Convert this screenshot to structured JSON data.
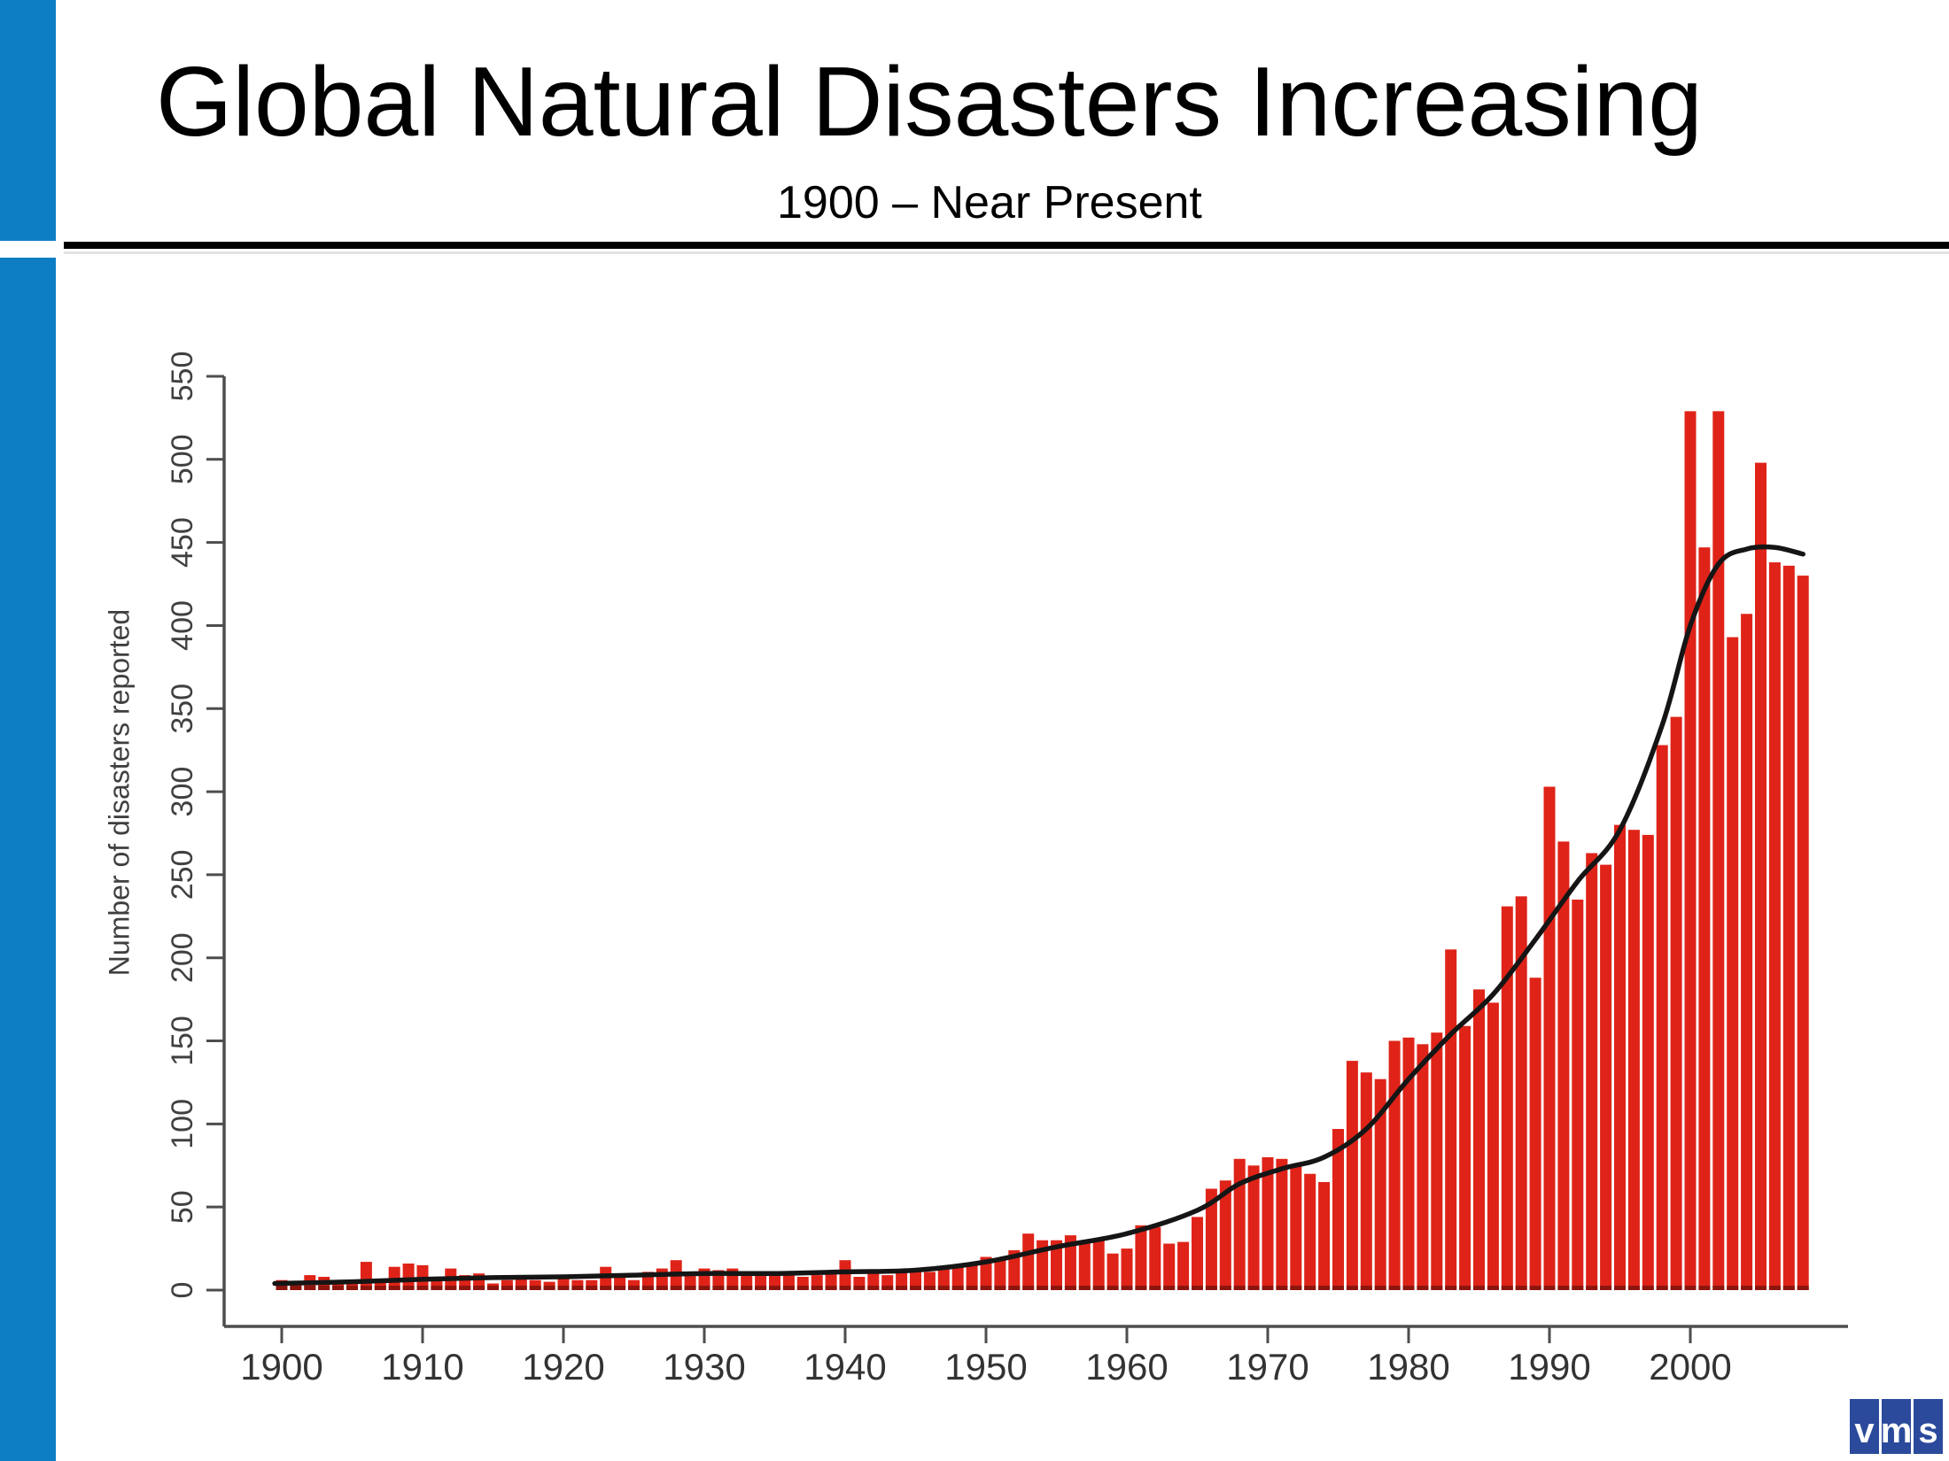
{
  "slide": {
    "title": "Global Natural Disasters Increasing",
    "subtitle": "1900 – Near Present",
    "accent_stripe_color": "#0d7ec3",
    "rule_color": "#000000",
    "background": "#ffffff"
  },
  "logo": {
    "letters": [
      "v",
      "m",
      "s"
    ],
    "tile_color": "#2b4a9c",
    "letter_color": "#ffffff"
  },
  "chart_data": {
    "type": "bar",
    "title": "",
    "xlabel": "",
    "ylabel": "Number of disasters reported",
    "x_start_year": 1900,
    "x_end_year": 2008,
    "x_ticks": [
      1900,
      1910,
      1920,
      1930,
      1940,
      1950,
      1960,
      1970,
      1980,
      1990,
      2000
    ],
    "y_ticks": [
      0,
      50,
      100,
      150,
      200,
      250,
      300,
      350,
      400,
      450,
      500,
      550
    ],
    "ylim": [
      0,
      550
    ],
    "grid": false,
    "legend": false,
    "bar_color": "#df2318",
    "bar_base_color": "#8c150e",
    "trend_color": "#151515",
    "axis_color": "#4d4d4d",
    "tick_label_color": "#404040",
    "values_by_year": [
      6,
      4,
      9,
      8,
      5,
      6,
      17,
      6,
      14,
      16,
      15,
      8,
      13,
      9,
      10,
      4,
      6,
      9,
      6,
      5,
      9,
      6,
      6,
      14,
      8,
      6,
      11,
      13,
      18,
      9,
      13,
      12,
      13,
      10,
      11,
      9,
      10,
      8,
      9,
      11,
      18,
      8,
      10,
      9,
      11,
      12,
      11,
      13,
      14,
      15,
      20,
      19,
      24,
      34,
      30,
      30,
      33,
      28,
      30,
      22,
      25,
      39,
      38,
      28,
      29,
      44,
      61,
      66,
      79,
      75,
      80,
      79,
      75,
      70,
      65,
      97,
      138,
      131,
      127,
      150,
      152,
      148,
      155,
      205,
      159,
      181,
      173,
      231,
      237,
      188,
      303,
      270,
      235,
      263,
      256,
      280,
      277,
      274,
      328,
      345,
      529,
      447,
      529,
      393,
      407,
      498,
      438,
      436,
      430
    ],
    "trend_line": {
      "description": "smoothed trend of disasters reported",
      "points": [
        [
          1899.5,
          4
        ],
        [
          1905,
          5
        ],
        [
          1910,
          6.5
        ],
        [
          1915,
          7.5
        ],
        [
          1920,
          8
        ],
        [
          1925,
          9
        ],
        [
          1930,
          10
        ],
        [
          1935,
          10
        ],
        [
          1940,
          11
        ],
        [
          1945,
          12
        ],
        [
          1950,
          17
        ],
        [
          1955,
          26
        ],
        [
          1960,
          34
        ],
        [
          1965,
          48
        ],
        [
          1968,
          64
        ],
        [
          1971,
          73
        ],
        [
          1974,
          80
        ],
        [
          1977,
          97
        ],
        [
          1980,
          127
        ],
        [
          1983,
          154
        ],
        [
          1986,
          178
        ],
        [
          1989,
          211
        ],
        [
          1992,
          246
        ],
        [
          1995,
          277
        ],
        [
          1998,
          340
        ],
        [
          2000,
          400
        ],
        [
          2002,
          437
        ],
        [
          2004,
          446
        ],
        [
          2006,
          447
        ],
        [
          2008,
          443
        ]
      ]
    }
  }
}
